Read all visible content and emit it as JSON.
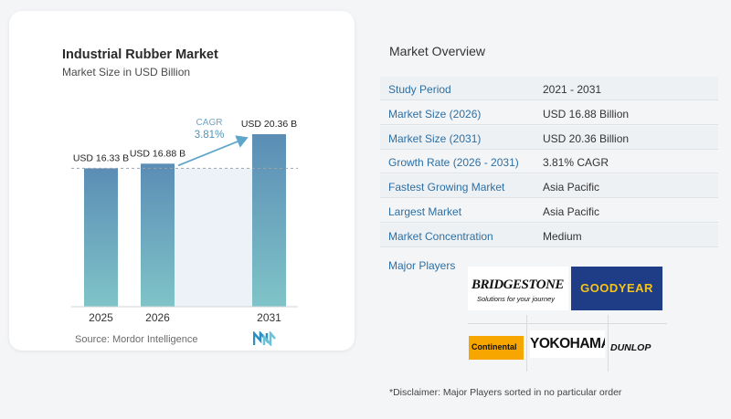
{
  "chart_data": {
    "type": "bar",
    "title": "Industrial Rubber Market",
    "subtitle": "Market Size in USD Billion",
    "categories": [
      "2025",
      "2026",
      "2031"
    ],
    "values": [
      16.33,
      16.88,
      20.36
    ],
    "value_labels": [
      "USD 16.33 B",
      "USD 16.88 B",
      "USD 20.36 B"
    ],
    "cagr_label": "CAGR",
    "cagr_value": "3.81%",
    "bar_color_top": "#5b8db5",
    "bar_color_bottom": "#7fc4c8"
  },
  "source": "Source:  Mordor Intelligence",
  "overview": {
    "title": "Market Overview",
    "rows": [
      {
        "label": "Study Period",
        "value": "2021 - 2031"
      },
      {
        "label": "Market Size (2026)",
        "value": "USD 16.88 Billion"
      },
      {
        "label": "Market Size (2031)",
        "value": "USD 20.36 Billion"
      },
      {
        "label": "Growth Rate (2026 - 2031)",
        "value": "3.81% CAGR"
      },
      {
        "label": "Fastest Growing Market",
        "value": "Asia Pacific"
      },
      {
        "label": "Largest Market",
        "value": "Asia Pacific"
      },
      {
        "label": "Market Concentration",
        "value": "Medium"
      }
    ]
  },
  "players": {
    "title": "Major Players",
    "logos": {
      "bridgestone": "BRIDGESTONE",
      "bridgestone_tag": "Solutions for your journey",
      "goodyear": "GOODYEAR",
      "continental": "Continental",
      "yokohama": "YOKOHAMA",
      "dunlop": "DUNLOP"
    }
  },
  "disclaimer": "*Disclaimer: Major Players sorted in no particular order",
  "colors": {
    "accent": "#2d6fa3",
    "goodyear_blue": "#1f3c87",
    "goodyear_yellow": "#f5c518",
    "continental_orange": "#f7a600"
  }
}
